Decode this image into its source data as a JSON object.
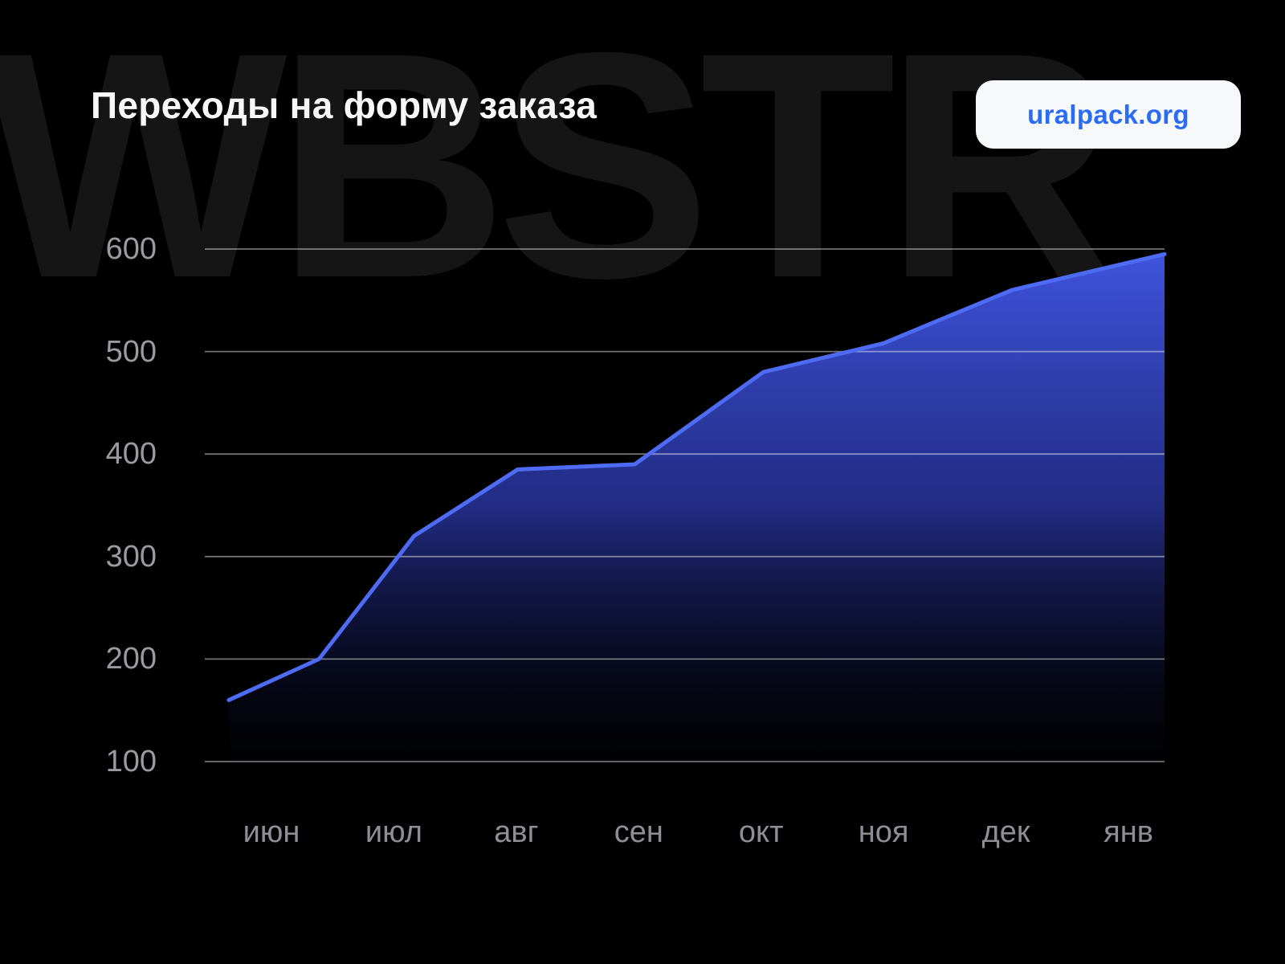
{
  "page": {
    "background_color": "#000000"
  },
  "watermark": "WBSTR",
  "header": {
    "title": "Переходы на форму заказа",
    "badge_label": "uralpack.org",
    "badge_bg_color": "#f7f8fa",
    "badge_text_color": "#2a6cf4"
  },
  "chart_data": {
    "type": "area",
    "title": "Переходы на форму заказа",
    "categories": [
      "июн",
      "июл",
      "авг",
      "сен",
      "окт",
      "ноя",
      "дек",
      "янв"
    ],
    "values": [
      160,
      320,
      385,
      390,
      480,
      510,
      560,
      595
    ],
    "points": [
      {
        "x": 0.025,
        "v": 160
      },
      {
        "x": 0.119,
        "v": 200
      },
      {
        "x": 0.218,
        "v": 320
      },
      {
        "x": 0.326,
        "v": 385
      },
      {
        "x": 0.448,
        "v": 390
      },
      {
        "x": 0.582,
        "v": 480
      },
      {
        "x": 0.707,
        "v": 508
      },
      {
        "x": 0.841,
        "v": 560
      },
      {
        "x": 1.0,
        "v": 595
      }
    ],
    "yticks": [
      600,
      500,
      400,
      300,
      200,
      100
    ],
    "ylim": [
      100,
      600
    ],
    "grid": true,
    "legend": "none",
    "line_color": "#4d6bf3",
    "fill_top_color": "#4156e4",
    "fill_mid_color": "#2b38a8",
    "fill_bottom_color": "#0a0e2e",
    "grid_color": "rgba(255,255,255,0.45)",
    "ytick_color": "#9a9b9f",
    "xtick_color": "#8e8f94"
  }
}
